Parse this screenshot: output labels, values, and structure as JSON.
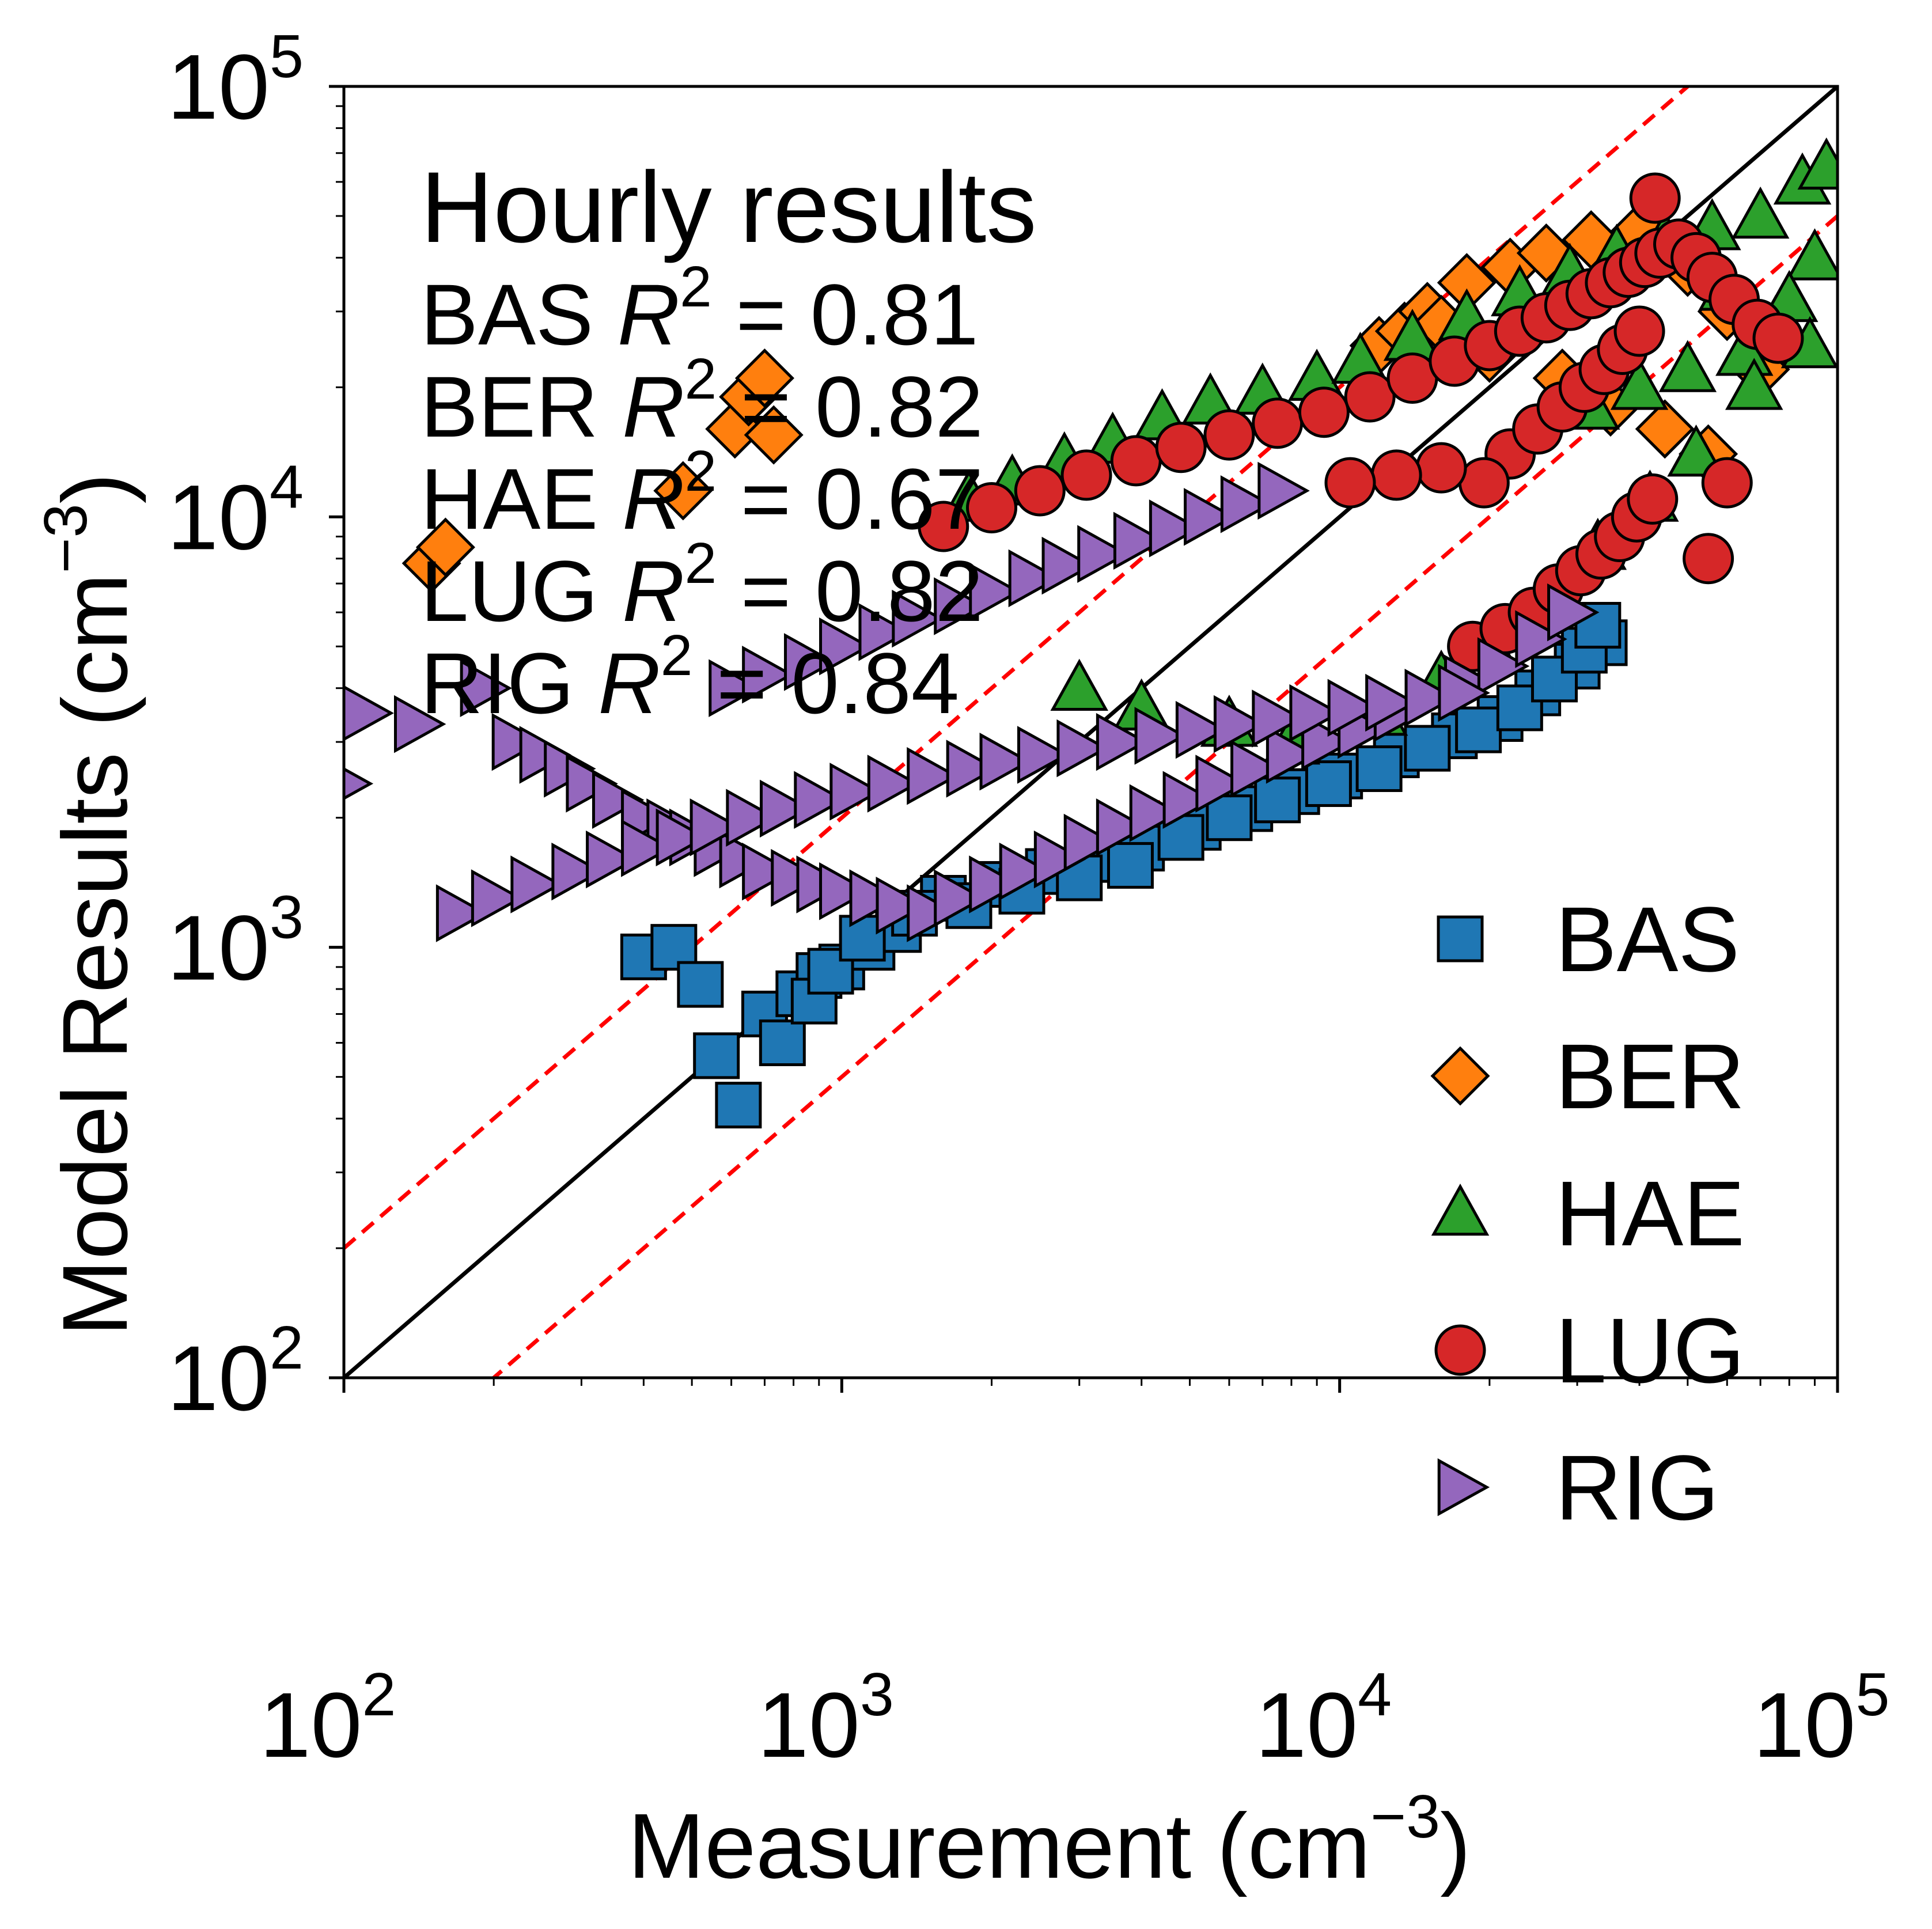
{
  "chart_data": {
    "type": "scatter",
    "title": "",
    "xlabel": "Measurement (cm",
    "ylabel": "Model Results (cm",
    "label_superscript": "−3",
    "label_close": ")",
    "x_scale": "log",
    "y_scale": "log",
    "xlim": [
      100,
      100000
    ],
    "ylim": [
      100,
      100000
    ],
    "grid": false,
    "x_ticks": [
      100,
      1000,
      10000,
      100000
    ],
    "y_ticks": [
      100,
      1000,
      10000,
      100000
    ],
    "tick_labels": [
      {
        "base": "10",
        "exp": "2"
      },
      {
        "base": "10",
        "exp": "3"
      },
      {
        "base": "10",
        "exp": "4"
      },
      {
        "base": "10",
        "exp": "5"
      }
    ],
    "annotation": {
      "heading": "Hourly results",
      "stats": [
        {
          "site": "BAS",
          "r2_symbol": "R",
          "r2_exp": "2",
          "eq": "= 0.81"
        },
        {
          "site": "BER",
          "r2_symbol": "R",
          "r2_exp": "2",
          "eq": "= 0.82"
        },
        {
          "site": "HAE",
          "r2_symbol": "R",
          "r2_exp": "2",
          "eq": "= 0.67"
        },
        {
          "site": "LUG",
          "r2_symbol": "R",
          "r2_exp": "2",
          "eq": "= 0.82"
        },
        {
          "site": "RIG",
          "r2_symbol": "R",
          "r2_exp": "2",
          "eq": "= 0.84"
        }
      ]
    },
    "reference_lines": [
      {
        "kind": "1:1",
        "style": "solid",
        "color": "#000000",
        "factor": 1
      },
      {
        "kind": "2x",
        "style": "dashed",
        "color": "#ff0000",
        "factor": 2
      },
      {
        "kind": "0.5x",
        "style": "dashed",
        "color": "#ff0000",
        "factor": 0.5
      }
    ],
    "legend_position": "lower-right",
    "series": [
      {
        "name": "BAS",
        "marker": "square",
        "color": "#1f77b4",
        "x": [
          620,
          560,
          700,
          820,
          900,
          1000,
          1150,
          1300,
          1600,
          2100,
          2600,
          3200,
          4000,
          5200,
          6600,
          8200,
          10000,
          13000,
          17000,
          21000,
          25000,
          30000,
          34000,
          400,
          460,
          520,
          760,
          880,
          950,
          1100,
          1400,
          1800,
          2300,
          3000,
          3800,
          4800,
          6000,
          7500,
          9500,
          12000,
          15000,
          19000,
          23000,
          27000,
          31000,
          33000
        ],
        "y": [
          430,
          560,
          700,
          780,
          860,
          900,
          1000,
          1100,
          1300,
          1400,
          1500,
          1600,
          1700,
          1900,
          2100,
          2300,
          2500,
          2800,
          3100,
          3400,
          3900,
          4500,
          5100,
          950,
          1000,
          820,
          600,
          750,
          880,
          1050,
          1200,
          1250,
          1350,
          1450,
          1550,
          1800,
          2000,
          2200,
          2400,
          2600,
          2900,
          3200,
          3600,
          4200,
          4900,
          5600
        ]
      },
      {
        "name": "BER",
        "marker": "diamond",
        "color": "#ff7f0e",
        "x": [
          150,
          160,
          480,
          610,
          650,
          700,
          730,
          12000,
          13500,
          15000,
          18000,
          22000,
          26000,
          32000,
          40000,
          50000,
          60000,
          70000,
          35000,
          28000,
          20000,
          16000,
          45000,
          55000
        ],
        "y": [
          7800,
          8500,
          11500,
          16000,
          19000,
          21000,
          15500,
          25000,
          27000,
          30000,
          35000,
          38000,
          41000,
          44000,
          46000,
          38000,
          30000,
          22000,
          18000,
          21000,
          24000,
          28000,
          16000,
          14000
        ]
      },
      {
        "name": "HAE",
        "marker": "triangle",
        "color": "#2ca02c",
        "x": [
          1800,
          2200,
          2800,
          3500,
          4400,
          5500,
          7000,
          9000,
          11000,
          14000,
          18000,
          23000,
          29000,
          36000,
          45000,
          56000,
          70000,
          85000,
          95000,
          60000,
          75000,
          90000,
          65000,
          80000,
          50000,
          40000,
          32000,
          3000,
          4000,
          6000,
          8000,
          12000,
          16000,
          20000,
          26000,
          33000,
          42000,
          52000,
          68000,
          88000
        ],
        "y": [
          11000,
          12000,
          13500,
          15000,
          17000,
          18500,
          19500,
          21000,
          23000,
          26000,
          29000,
          33000,
          37000,
          41000,
          44000,
          47000,
          50000,
          60000,
          65000,
          34000,
          28000,
          40000,
          24000,
          32000,
          22000,
          20000,
          18000,
          4000,
          3600,
          3300,
          3000,
          3500,
          4200,
          5000,
          6500,
          8500,
          11000,
          14000,
          20000,
          25000
        ],
        "clip_note": ""
      },
      {
        "name": "LUG",
        "marker": "circle",
        "color": "#d62728",
        "x": [
          1600,
          2000,
          2500,
          3100,
          3900,
          4800,
          6000,
          7500,
          9300,
          11500,
          14000,
          17000,
          20000,
          23000,
          26000,
          29000,
          32000,
          35000,
          38000,
          41000,
          44000,
          48000,
          52000,
          56000,
          62000,
          69000,
          76000,
          18500,
          21500,
          24500,
          27500,
          30500,
          33500,
          36500,
          39500,
          42500,
          22000,
          25000,
          28000,
          31000,
          34000,
          37000,
          40000,
          19500,
          16000,
          13000,
          10500,
          43000,
          55000,
          60000
        ],
        "y": [
          9500,
          10500,
          11500,
          12500,
          13500,
          14500,
          15500,
          16500,
          17500,
          19000,
          21000,
          23000,
          25000,
          27000,
          29000,
          31000,
          33000,
          35000,
          37000,
          39000,
          41000,
          43000,
          40000,
          36000,
          32000,
          28000,
          26000,
          5000,
          5500,
          6000,
          6800,
          7500,
          8200,
          9000,
          10000,
          11000,
          14000,
          16000,
          18000,
          20000,
          22000,
          24500,
          27000,
          12000,
          13000,
          12500,
          12000,
          55000,
          8000,
          12000
        ]
      },
      {
        "name": "RIG",
        "marker": "triangle-right",
        "color": "#9467bd",
        "x": [
          100,
          110,
          140,
          190,
          220,
          250,
          280,
          310,
          350,
          400,
          450,
          500,
          560,
          630,
          700,
          800,
          900,
          1000,
          1150,
          1300,
          1500,
          1700,
          2000,
          2300,
          2700,
          3100,
          3600,
          4200,
          4900,
          5700,
          6700,
          7900,
          9300,
          11000,
          13000,
          15000,
          18000,
          21000,
          25000,
          29000,
          170,
          200,
          240,
          290,
          340,
          400,
          470,
          550,
          650,
          760,
          890,
          1050,
          1250,
          1500,
          1800,
          2100,
          2500,
          3000,
          3600,
          4300,
          5200,
          6200,
          7400,
          8800,
          10500,
          12500,
          15000,
          17500,
          600,
          700,
          850,
          1000,
          1200,
          1400,
          1700,
          2000,
          2400,
          2800,
          3300,
          3900,
          4600,
          5400,
          6400,
          7600
        ],
        "y": [
          2400,
          3500,
          3300,
          4000,
          3000,
          2800,
          2600,
          2400,
          2200,
          2000,
          1900,
          1800,
          1700,
          1600,
          1500,
          1450,
          1400,
          1350,
          1300,
          1250,
          1200,
          1300,
          1400,
          1500,
          1600,
          1750,
          1900,
          2050,
          2200,
          2400,
          2600,
          2800,
          3000,
          3200,
          3500,
          3800,
          4100,
          4500,
          5200,
          6000,
          1200,
          1300,
          1400,
          1500,
          1600,
          1700,
          1800,
          1900,
          2000,
          2100,
          2200,
          2300,
          2400,
          2500,
          2600,
          2700,
          2800,
          2900,
          3000,
          3100,
          3200,
          3300,
          3400,
          3500,
          3600,
          3700,
          3800,
          3900,
          4000,
          4300,
          4600,
          5000,
          5400,
          5800,
          6200,
          6700,
          7200,
          7700,
          8200,
          8800,
          9400,
          10000,
          10700,
          11500
        ]
      }
    ]
  }
}
